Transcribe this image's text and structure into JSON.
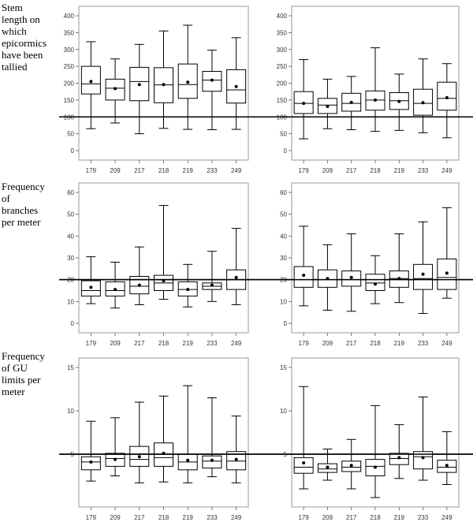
{
  "row_labels": [
    [
      "Stem",
      "length on",
      "which",
      "epicormics",
      "have been",
      "tallied"
    ],
    [
      "Frequency",
      "of",
      "branches",
      "per meter"
    ],
    [
      "Frequency",
      "of GU",
      "limits per",
      "meter"
    ]
  ],
  "chart_data": [
    {
      "type": "boxplot",
      "categories": [
        "179",
        "209",
        "217",
        "218",
        "219",
        "233",
        "249"
      ],
      "ylim": [
        0,
        400
      ],
      "yticks": [
        0,
        50,
        100,
        150,
        200,
        250,
        300,
        350,
        400
      ],
      "reference_line": 100,
      "boxes": [
        {
          "min": 65,
          "q1": 168,
          "median": 198,
          "q3": 250,
          "max": 323,
          "mean": 205
        },
        {
          "min": 82,
          "q1": 150,
          "median": 185,
          "q3": 212,
          "max": 272,
          "mean": 184
        },
        {
          "min": 50,
          "q1": 148,
          "median": 205,
          "q3": 247,
          "max": 315,
          "mean": 196
        },
        {
          "min": 66,
          "q1": 142,
          "median": 195,
          "q3": 246,
          "max": 355,
          "mean": 196
        },
        {
          "min": 63,
          "q1": 155,
          "median": 196,
          "q3": 257,
          "max": 372,
          "mean": 203
        },
        {
          "min": 62,
          "q1": 176,
          "median": 209,
          "q3": 235,
          "max": 298,
          "mean": 209
        },
        {
          "min": 63,
          "q1": 141,
          "median": 180,
          "q3": 240,
          "max": 335,
          "mean": 190
        }
      ]
    },
    {
      "type": "boxplot",
      "categories": [
        "179",
        "209",
        "217",
        "218",
        "219",
        "233",
        "249"
      ],
      "ylim": [
        0,
        400
      ],
      "yticks": [
        0,
        50,
        100,
        150,
        200,
        250,
        300,
        350,
        400
      ],
      "reference_line": 100,
      "boxes": [
        {
          "min": 35,
          "q1": 110,
          "median": 140,
          "q3": 175,
          "max": 270,
          "mean": 140
        },
        {
          "min": 65,
          "q1": 110,
          "median": 135,
          "q3": 155,
          "max": 212,
          "mean": 131
        },
        {
          "min": 62,
          "q1": 117,
          "median": 140,
          "q3": 170,
          "max": 220,
          "mean": 143
        },
        {
          "min": 57,
          "q1": 120,
          "median": 150,
          "q3": 177,
          "max": 305,
          "mean": 150
        },
        {
          "min": 60,
          "q1": 122,
          "median": 148,
          "q3": 172,
          "max": 227,
          "mean": 146
        },
        {
          "min": 53,
          "q1": 105,
          "median": 140,
          "q3": 182,
          "max": 272,
          "mean": 142
        },
        {
          "min": 38,
          "q1": 120,
          "median": 155,
          "q3": 203,
          "max": 258,
          "mean": 157
        }
      ]
    },
    {
      "type": "boxplot",
      "categories": [
        "179",
        "209",
        "217",
        "218",
        "219",
        "233",
        "249"
      ],
      "ylim": [
        0,
        60
      ],
      "yticks": [
        0,
        10,
        20,
        30,
        40,
        50,
        60
      ],
      "reference_line": 20,
      "boxes": [
        {
          "min": 9,
          "q1": 12.5,
          "median": 15,
          "q3": 19.5,
          "max": 30.5,
          "mean": 16.5
        },
        {
          "min": 7,
          "q1": 12.5,
          "median": 15,
          "q3": 19,
          "max": 28,
          "mean": 15.5
        },
        {
          "min": 8.5,
          "q1": 13.5,
          "median": 17,
          "q3": 21.5,
          "max": 35,
          "mean": 17.5
        },
        {
          "min": 11,
          "q1": 15,
          "median": 18.5,
          "q3": 22,
          "max": 54,
          "mean": 19.5
        },
        {
          "min": 7.5,
          "q1": 12.5,
          "median": 15.5,
          "q3": 19,
          "max": 27,
          "mean": 15.5
        },
        {
          "min": 10,
          "q1": 15.5,
          "median": 17,
          "q3": 18.5,
          "max": 33,
          "mean": 17.5
        },
        {
          "min": 8.5,
          "q1": 15.5,
          "median": 20,
          "q3": 24.5,
          "max": 43.5,
          "mean": 21
        }
      ]
    },
    {
      "type": "boxplot",
      "categories": [
        "179",
        "209",
        "217",
        "218",
        "219",
        "233",
        "249"
      ],
      "ylim": [
        0,
        60
      ],
      "yticks": [
        0,
        10,
        20,
        30,
        40,
        50,
        60
      ],
      "reference_line": 20,
      "boxes": [
        {
          "min": 8,
          "q1": 16.5,
          "median": 20,
          "q3": 26,
          "max": 44.5,
          "mean": 22
        },
        {
          "min": 6,
          "q1": 16.5,
          "median": 20,
          "q3": 24.5,
          "max": 36,
          "mean": 20.5
        },
        {
          "min": 5.5,
          "q1": 17,
          "median": 20,
          "q3": 24,
          "max": 41,
          "mean": 21
        },
        {
          "min": 9,
          "q1": 15,
          "median": 18.5,
          "q3": 22.5,
          "max": 31,
          "mean": 18
        },
        {
          "min": 9.5,
          "q1": 16.5,
          "median": 20.5,
          "q3": 24,
          "max": 41,
          "mean": 20.5
        },
        {
          "min": 4.5,
          "q1": 15.5,
          "median": 20.5,
          "q3": 27,
          "max": 46.5,
          "mean": 22.5
        },
        {
          "min": 11.5,
          "q1": 15.5,
          "median": 21,
          "q3": 29.5,
          "max": 53,
          "mean": 23
        }
      ]
    },
    {
      "type": "boxplot",
      "categories": [
        "179",
        "209",
        "217",
        "218",
        "219",
        "233",
        "249"
      ],
      "ylim": [
        0,
        15
      ],
      "yticks": [
        5,
        10,
        15
      ],
      "reference_line": 5,
      "boxes": [
        {
          "min": 1.9,
          "q1": 3.2,
          "median": 4.1,
          "q3": 4.7,
          "max": 8.8,
          "mean": 4.1
        },
        {
          "min": 2.5,
          "q1": 3.6,
          "median": 4.5,
          "q3": 5.1,
          "max": 9.2,
          "mean": 4.4
        },
        {
          "min": 1.7,
          "q1": 3.6,
          "median": 4.4,
          "q3": 5.9,
          "max": 11.0,
          "mean": 4.7
        },
        {
          "min": 1.8,
          "q1": 3.6,
          "median": 4.6,
          "q3": 6.3,
          "max": 11.7,
          "mean": 5.1
        },
        {
          "min": 1.7,
          "q1": 3.2,
          "median": 4.1,
          "q3": 5.0,
          "max": 12.9,
          "mean": 4.3
        },
        {
          "min": 2.4,
          "q1": 3.4,
          "median": 4.2,
          "q3": 4.8,
          "max": 11.5,
          "mean": 4.3
        },
        {
          "min": 1.7,
          "q1": 3.2,
          "median": 4.2,
          "q3": 5.3,
          "max": 9.4,
          "mean": 4.4
        }
      ]
    },
    {
      "type": "boxplot",
      "categories": [
        "179",
        "209",
        "217",
        "218",
        "219",
        "233",
        "249"
      ],
      "ylim": [
        0,
        15
      ],
      "yticks": [
        5,
        10,
        15
      ],
      "reference_line": 5,
      "boxes": [
        {
          "min": 1.0,
          "q1": 2.8,
          "median": 3.5,
          "q3": 4.6,
          "max": 12.8,
          "mean": 4.0
        },
        {
          "min": 2.0,
          "q1": 2.9,
          "median": 3.3,
          "q3": 3.9,
          "max": 5.6,
          "mean": 3.5
        },
        {
          "min": 1.0,
          "q1": 3.0,
          "median": 3.5,
          "q3": 4.2,
          "max": 6.7,
          "mean": 3.7
        },
        {
          "min": 0.0,
          "q1": 2.5,
          "median": 3.6,
          "q3": 4.4,
          "max": 10.6,
          "mean": 3.5
        },
        {
          "min": 2.2,
          "q1": 3.8,
          "median": 4.5,
          "q3": 5.1,
          "max": 8.4,
          "mean": 4.6
        },
        {
          "min": 2.0,
          "q1": 3.3,
          "median": 4.7,
          "q3": 5.3,
          "max": 11.6,
          "mean": 4.6
        },
        {
          "min": 1.5,
          "q1": 2.9,
          "median": 3.5,
          "q3": 4.3,
          "max": 7.6,
          "mean": 3.7
        }
      ]
    }
  ]
}
